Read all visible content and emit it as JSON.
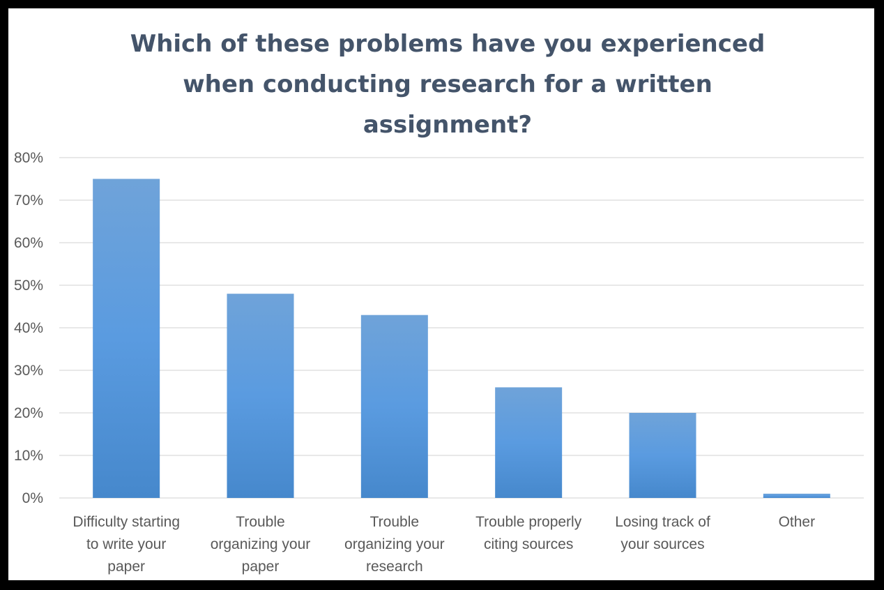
{
  "chart_data": {
    "type": "bar",
    "title": "Which of these problems have you experienced\nwhen conducting research for a written\nassignment?",
    "categories": [
      [
        "Difficulty starting",
        "to write your",
        "paper"
      ],
      [
        "Trouble",
        "organizing your",
        "paper"
      ],
      [
        "Trouble",
        "organizing your",
        "research"
      ],
      [
        "Trouble properly",
        "citing sources"
      ],
      [
        "Losing track of",
        "your sources"
      ],
      [
        "Other"
      ]
    ],
    "values": [
      0.75,
      0.48,
      0.43,
      0.26,
      0.2,
      0.01
    ],
    "ylim": [
      0,
      0.8
    ],
    "yticks": [
      "0%",
      "10%",
      "20%",
      "30%",
      "40%",
      "50%",
      "60%",
      "70%",
      "80%"
    ],
    "grid": true,
    "colors": {
      "bar_top": "#6fa3d9",
      "bar_mid": "#5a9be0",
      "bar_bottom": "#4688cc",
      "grid": "#d9d9d9",
      "title": "#44546a"
    }
  }
}
